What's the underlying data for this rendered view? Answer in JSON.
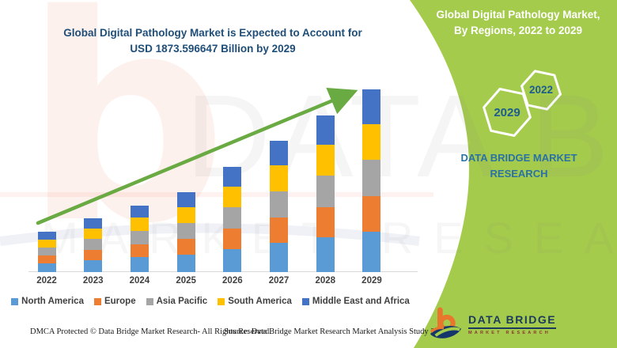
{
  "header": {
    "title_line1": "Global Digital Pathology Market is Expected to Account for",
    "title_line2": "USD 1873.596647 Billion by 2029"
  },
  "side_panel": {
    "panel_color": "#a4cb4c",
    "title_line1": "Global Digital Pathology Market,",
    "title_line2": "By Regions, 2022 to 2029",
    "hexagons": [
      {
        "label": "2029"
      },
      {
        "label": "2022"
      }
    ],
    "brand_text": "DATA BRIDGE MARKET RESEARCH"
  },
  "logo": {
    "name_line": "DATA BRIDGE",
    "sub_line": "MARKET RESEARCH"
  },
  "footer": {
    "dmca": "DMCA Protected © Data Bridge Market Research- All Rights Reserved.",
    "source": "Source: Data Bridge Market Research Market Analysis Study 2022"
  },
  "watermark": {
    "line1": "DATA BRI",
    "line2": "MARKET RESEARCH"
  },
  "chart_data": {
    "type": "bar",
    "stacked": true,
    "title": "Global Digital Pathology Market is Expected to Account for USD 1873.596647 Billion by 2029",
    "values_unit": "USD Billion",
    "categories": [
      "2022",
      "2023",
      "2024",
      "2025",
      "2026",
      "2027",
      "2028",
      "2029"
    ],
    "series": [
      {
        "name": "North America",
        "color": "#5B9BD5",
        "values": [
          91,
          121,
          151,
          180,
          237,
          297,
          354,
          412
        ]
      },
      {
        "name": "Europe",
        "color": "#ED7D31",
        "values": [
          81,
          107,
          134,
          160,
          210,
          263,
          314,
          365
        ]
      },
      {
        "name": "Asia Pacific",
        "color": "#A5A5A5",
        "values": [
          83,
          110,
          137,
          164,
          216,
          270,
          322,
          375
        ]
      },
      {
        "name": "South America",
        "color": "#FFC000",
        "values": [
          81,
          108,
          134,
          160,
          211,
          264,
          315,
          367
        ]
      },
      {
        "name": "Middle East and Africa",
        "color": "#4472C4",
        "values": [
          78,
          105,
          129,
          155,
          205,
          256,
          305,
          354.6
        ]
      }
    ],
    "totals_estimated": [
      414,
      551,
      685,
      819,
      1079,
      1350,
      1610,
      1873.596647
    ],
    "ylim": [
      0,
      1950
    ],
    "xlabel": "",
    "ylabel": "",
    "grid": false,
    "legend_position": "bottom",
    "trend_arrow": true,
    "trend_arrow_color": "#6aaa43"
  }
}
